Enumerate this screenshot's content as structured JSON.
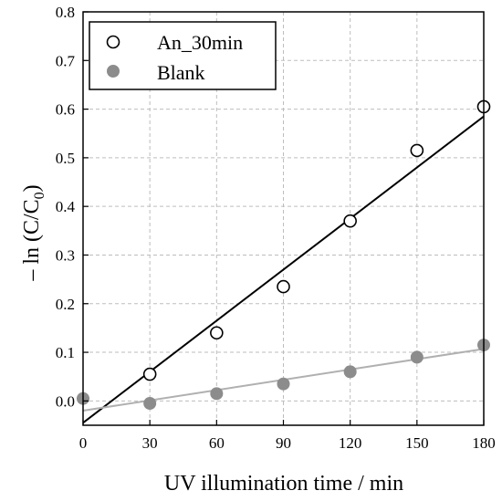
{
  "chart_data": {
    "type": "scatter",
    "title": "",
    "xlabel": "UV illumination time / min",
    "ylabel": {
      "prefix": "– ln (C/C",
      "sub": "0",
      "suffix": ")"
    },
    "xlim": [
      0,
      180
    ],
    "ylim": [
      -0.05,
      0.8
    ],
    "x_ticks": [
      0,
      30,
      60,
      90,
      120,
      150,
      180
    ],
    "y_ticks": [
      0.0,
      0.1,
      0.2,
      0.3,
      0.4,
      0.5,
      0.6,
      0.7,
      0.8
    ],
    "x_tick_labels": [
      "0",
      "30",
      "60",
      "90",
      "120",
      "150",
      "180"
    ],
    "y_tick_labels": [
      "0.0",
      "0.1",
      "0.2",
      "0.3",
      "0.4",
      "0.5",
      "0.6",
      "0.7",
      "0.8"
    ],
    "grid": true,
    "legend_position": "top-left",
    "series": [
      {
        "name": "An_30min",
        "marker": "open-circle",
        "color": "#000000",
        "x": [
          30,
          60,
          90,
          120,
          150,
          180
        ],
        "y": [
          0.055,
          0.14,
          0.235,
          0.37,
          0.515,
          0.605
        ],
        "fit": {
          "x": [
            0,
            180
          ],
          "y": [
            -0.045,
            0.585
          ],
          "color": "#000000"
        }
      },
      {
        "name": "Blank",
        "marker": "filled-circle",
        "color": "#8c8c8c",
        "x": [
          0,
          30,
          60,
          90,
          120,
          150,
          180
        ],
        "y": [
          0.005,
          -0.005,
          0.015,
          0.035,
          0.06,
          0.09,
          0.115
        ],
        "fit": {
          "x": [
            0,
            180
          ],
          "y": [
            -0.02,
            0.107
          ],
          "color": "#b0b0b0"
        }
      }
    ]
  }
}
